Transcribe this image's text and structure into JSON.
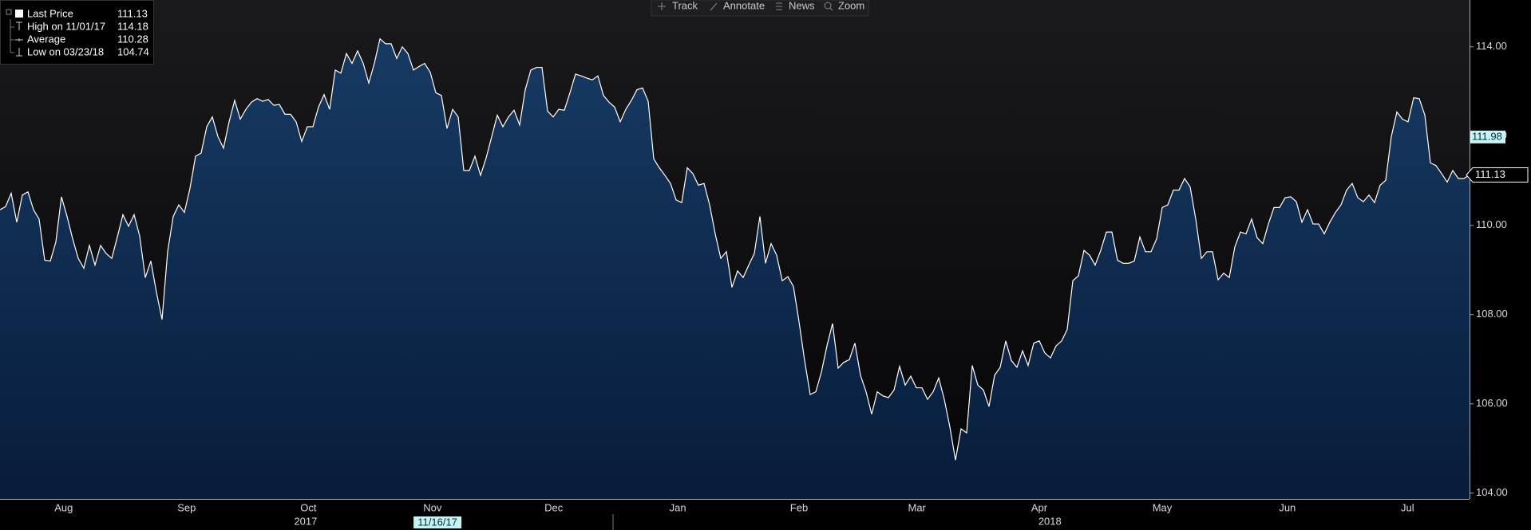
{
  "chart_data": {
    "type": "area",
    "series": [
      {
        "name": "Last Price",
        "color": "#ffffff",
        "values": [
          110.35,
          110.42,
          110.72,
          110.07,
          110.68,
          110.75,
          110.35,
          110.14,
          109.22,
          109.2,
          109.63,
          110.64,
          110.2,
          109.7,
          109.26,
          109.04,
          109.55,
          109.11,
          109.55,
          109.37,
          109.26,
          109.74,
          110.24,
          109.98,
          110.24,
          109.76,
          108.83,
          109.2,
          108.5,
          107.89,
          109.41,
          110.2,
          110.46,
          110.29,
          110.83,
          111.55,
          111.62,
          112.21,
          112.43,
          111.99,
          111.73,
          112.32,
          112.8,
          112.38,
          112.6,
          112.76,
          112.84,
          112.78,
          112.82,
          112.69,
          112.71,
          112.49,
          112.49,
          112.32,
          111.88,
          112.21,
          112.21,
          112.65,
          112.93,
          112.6,
          113.48,
          113.41,
          113.85,
          113.63,
          113.91,
          113.63,
          113.19,
          113.63,
          114.18,
          114.07,
          114.07,
          113.74,
          114.0,
          113.85,
          113.48,
          113.56,
          113.63,
          113.43,
          112.97,
          112.91,
          112.17,
          112.6,
          112.43,
          111.23,
          111.23,
          111.55,
          111.12,
          111.51,
          111.99,
          112.47,
          112.21,
          112.43,
          112.58,
          112.25,
          113.04,
          113.48,
          113.54,
          113.54,
          112.56,
          112.43,
          112.6,
          112.58,
          112.97,
          113.39,
          113.35,
          113.3,
          113.26,
          113.35,
          112.91,
          112.76,
          112.65,
          112.32,
          112.6,
          112.8,
          113.04,
          113.08,
          112.78,
          111.49,
          111.29,
          111.12,
          110.94,
          110.57,
          110.51,
          111.29,
          111.16,
          110.9,
          110.94,
          110.46,
          109.81,
          109.26,
          109.41,
          108.61,
          108.98,
          108.83,
          109.11,
          109.37,
          110.2,
          109.15,
          109.59,
          109.33,
          108.76,
          108.85,
          108.63,
          107.84,
          106.97,
          106.21,
          106.27,
          106.71,
          107.3,
          107.8,
          106.8,
          106.93,
          106.99,
          107.36,
          106.64,
          106.27,
          105.77,
          106.27,
          106.18,
          106.14,
          106.31,
          106.84,
          106.42,
          106.62,
          106.36,
          106.36,
          106.1,
          106.27,
          106.58,
          106.1,
          105.48,
          104.74,
          105.44,
          105.35,
          106.86,
          106.42,
          106.31,
          105.94,
          106.64,
          106.82,
          107.41,
          106.97,
          106.82,
          107.19,
          106.86,
          107.36,
          107.41,
          107.14,
          107.03,
          107.3,
          107.41,
          107.67,
          108.76,
          108.87,
          109.44,
          109.33,
          109.11,
          109.44,
          109.85,
          109.85,
          109.22,
          109.15,
          109.15,
          109.2,
          109.74,
          109.41,
          109.41,
          109.7,
          110.4,
          110.46,
          110.79,
          110.79,
          111.05,
          110.86,
          110.14,
          109.26,
          109.41,
          109.41,
          108.78,
          108.93,
          108.83,
          109.52,
          109.85,
          109.81,
          110.14,
          109.72,
          109.59,
          110.03,
          110.4,
          110.4,
          110.62,
          110.64,
          110.53,
          110.07,
          110.35,
          110.03,
          110.03,
          109.81,
          110.07,
          110.29,
          110.46,
          110.79,
          110.94,
          110.62,
          110.53,
          110.68,
          110.51,
          110.9,
          111.01,
          111.99,
          112.54,
          112.38,
          112.32,
          112.86,
          112.84,
          112.47,
          111.4,
          111.34,
          111.16,
          110.97,
          111.23,
          111.05,
          111.05,
          111.13
        ]
      }
    ],
    "xlim": [
      0,
      263
    ],
    "xticks": [
      {
        "value": 11.4,
        "label": "Aug"
      },
      {
        "value": 33.4,
        "label": "Sep"
      },
      {
        "value": 55.2,
        "label": "Oct"
      },
      {
        "value": 77.4,
        "label": "Nov"
      },
      {
        "value": 99.1,
        "label": "Dec"
      },
      {
        "value": 121.3,
        "label": "Jan"
      },
      {
        "value": 143,
        "label": "Feb"
      },
      {
        "value": 164.1,
        "label": "Mar"
      },
      {
        "value": 186,
        "label": "Apr"
      },
      {
        "value": 208,
        "label": "May"
      },
      {
        "value": 230.4,
        "label": "Jun"
      },
      {
        "value": 251.9,
        "label": "Jul"
      }
    ],
    "year_ticks": [
      {
        "value": 54.7,
        "label": "2017"
      },
      {
        "value": 187.9,
        "label": "2018"
      }
    ],
    "ylim": [
      103.87,
      115.05
    ],
    "yticks": [
      {
        "value": 104,
        "label": "104.00"
      },
      {
        "value": 106,
        "label": "106.00"
      },
      {
        "value": 108,
        "label": "108.00"
      },
      {
        "value": 110,
        "label": "110.00"
      },
      {
        "value": 112,
        "label": "112.00"
      },
      {
        "value": 114,
        "label": "114.00"
      }
    ],
    "stats": [
      {
        "label": "High on 11/01/17",
        "value": 114.18
      },
      {
        "label": "Average",
        "value": 110.28
      },
      {
        "label": "Low on 03/23/18",
        "value": 104.74
      }
    ],
    "crosshair": {
      "x": 78.3,
      "x_label": "11/16/17",
      "y": 111.98
    }
  },
  "toolbar": [
    "Track",
    "Annotate",
    "News",
    "Zoom"
  ]
}
